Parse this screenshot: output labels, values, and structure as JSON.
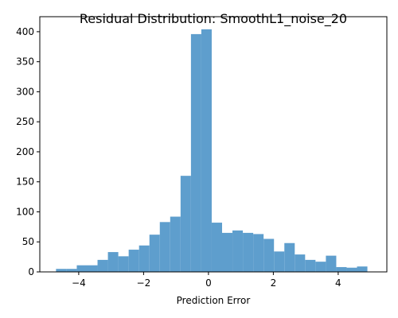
{
  "chart_data": {
    "type": "bar",
    "title": "Residual Distribution: SmoothL1_noise_20",
    "xlabel": "Prediction Error",
    "ylabel": "",
    "bar_color": "#5e9ecd",
    "xlim": [
      -5.2,
      5.5
    ],
    "ylim": [
      0,
      425
    ],
    "xticks": [
      -4,
      -2,
      0,
      2,
      4
    ],
    "yticks": [
      0,
      50,
      100,
      150,
      200,
      250,
      300,
      350,
      400
    ],
    "bin_start": -4.7,
    "bin_width": 0.32,
    "values": [
      5,
      5,
      11,
      11,
      20,
      33,
      26,
      37,
      44,
      62,
      83,
      92,
      160,
      396,
      404,
      82,
      65,
      69,
      65,
      63,
      55,
      34,
      48,
      29,
      20,
      17,
      27,
      8,
      7,
      9
    ],
    "grid": false
  }
}
